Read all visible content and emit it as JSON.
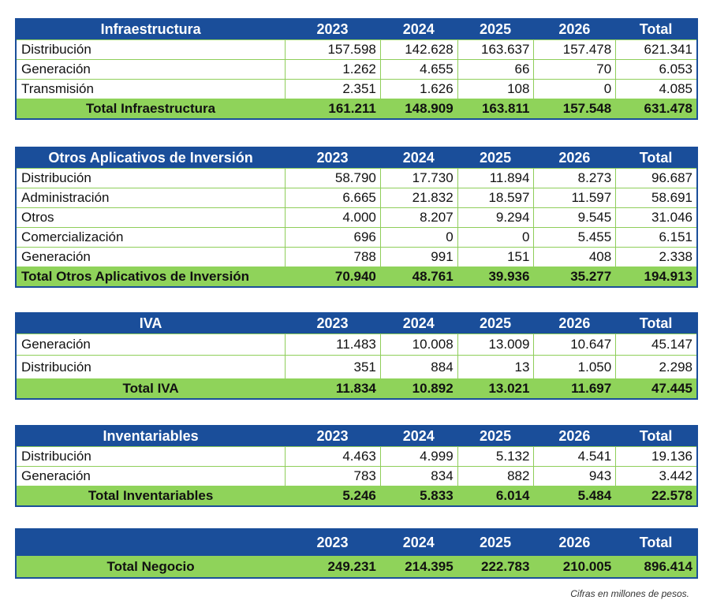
{
  "tables": {
    "infra": {
      "header": [
        "Infraestructura",
        "2023",
        "2024",
        "2025",
        "2026",
        "Total"
      ],
      "rows": [
        [
          "Distribución",
          "157.598",
          "142.628",
          "163.637",
          "157.478",
          "621.341"
        ],
        [
          "Generación",
          "1.262",
          "4.655",
          "66",
          "70",
          "6.053"
        ],
        [
          "Transmisión",
          "2.351",
          "1.626",
          "108",
          "0",
          "4.085"
        ]
      ],
      "total": [
        "Total Infraestructura",
        "161.211",
        "148.909",
        "163.811",
        "157.548",
        "631.478"
      ]
    },
    "otros": {
      "header": [
        "Otros Aplicativos de Inversión",
        "2023",
        "2024",
        "2025",
        "2026",
        "Total"
      ],
      "rows": [
        [
          "Distribución",
          "58.790",
          "17.730",
          "11.894",
          "8.273",
          "96.687"
        ],
        [
          "Administración",
          "6.665",
          "21.832",
          "18.597",
          "11.597",
          "58.691"
        ],
        [
          "Otros",
          "4.000",
          "8.207",
          "9.294",
          "9.545",
          "31.046"
        ],
        [
          "Comercialización",
          "696",
          "0",
          "0",
          "5.455",
          "6.151"
        ],
        [
          "Generación",
          "788",
          "991",
          "151",
          "408",
          "2.338"
        ]
      ],
      "total": [
        "Total Otros Aplicativos de Inversión",
        "70.940",
        "48.761",
        "39.936",
        "35.277",
        "194.913"
      ]
    },
    "iva": {
      "header": [
        "IVA",
        "2023",
        "2024",
        "2025",
        "2026",
        "Total"
      ],
      "rows": [
        [
          "Generación",
          "11.483",
          "10.008",
          "13.009",
          "10.647",
          "45.147"
        ],
        [
          "Distribución",
          "351",
          "884",
          "13",
          "1.050",
          "2.298"
        ]
      ],
      "total": [
        "Total IVA",
        "11.834",
        "10.892",
        "13.021",
        "11.697",
        "47.445"
      ]
    },
    "inv": {
      "header": [
        "Inventariables",
        "2023",
        "2024",
        "2025",
        "2026",
        "Total"
      ],
      "rows": [
        [
          "Distribución",
          "4.463",
          "4.999",
          "5.132",
          "4.541",
          "19.136"
        ],
        [
          "Generación",
          "783",
          "834",
          "882",
          "943",
          "3.442"
        ]
      ],
      "total": [
        "Total Inventariables",
        "5.246",
        "5.833",
        "6.014",
        "5.484",
        "22.578"
      ]
    },
    "negocio": {
      "header": [
        "",
        "2023",
        "2024",
        "2025",
        "2026",
        "Total"
      ],
      "total": [
        "Total Negocio",
        "249.231",
        "214.395",
        "222.783",
        "210.005",
        "896.414"
      ]
    }
  },
  "note": "Cifras en millones de pesos."
}
